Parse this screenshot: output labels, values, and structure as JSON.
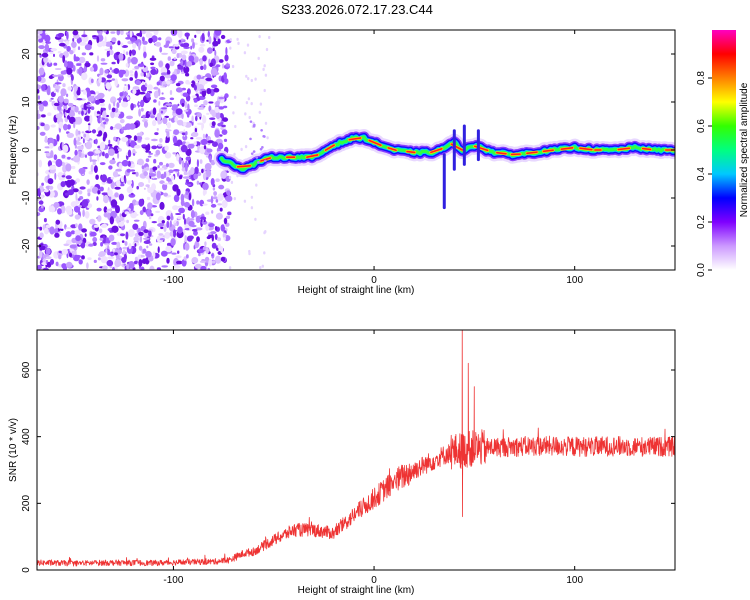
{
  "title": "S233.2026.072.17.23.C44",
  "chart_data": [
    {
      "type": "heatmap",
      "xlabel": "Height of straight line (km)",
      "ylabel": "Frequency (Hz)",
      "xlim": [
        -168,
        150
      ],
      "ylim": [
        -25,
        25
      ],
      "xticks": [
        -100,
        0,
        100
      ],
      "yticks": [
        -20,
        -10,
        0,
        10,
        20
      ],
      "colorbar": {
        "label": "Normalized spectral amplitude",
        "range": [
          0,
          1
        ],
        "ticks": [
          "0.0",
          "0.2",
          "0.4",
          "0.6",
          "0.8"
        ],
        "tick_values": [
          0,
          0.2,
          0.4,
          0.6,
          0.8
        ],
        "colors": [
          "#ffffff",
          "#cc99ff",
          "#7f00ff",
          "#0000ff",
          "#00c8ff",
          "#00ff80",
          "#33ff00",
          "#ffff00",
          "#ff8000",
          "#ff0000",
          "#ff00c0"
        ]
      },
      "noise_region_km": [
        -168,
        -72
      ],
      "ridge": {
        "x": [
          -76,
          -72,
          -66,
          -60,
          -55,
          -50,
          -40,
          -30,
          -20,
          -10,
          -5,
          0,
          10,
          20,
          30,
          35,
          40,
          44,
          48,
          52,
          56,
          60,
          70,
          80,
          90,
          100,
          110,
          120,
          130,
          140,
          150
        ],
        "y": [
          -2.0,
          -2.5,
          -4.0,
          -3.0,
          -2.0,
          -1.5,
          -1.5,
          -1.5,
          1.0,
          2.5,
          2.5,
          1.5,
          0,
          -0.5,
          -0.5,
          0.5,
          1.5,
          0,
          0.5,
          1.0,
          0,
          -0.5,
          -1.0,
          -0.5,
          0,
          0.5,
          0,
          0,
          0.5,
          0,
          0
        ]
      }
    },
    {
      "type": "line",
      "xlabel": "Height of straight line (km)",
      "ylabel": "SNR (10 * v/v)",
      "xlim": [
        -168,
        150
      ],
      "ylim": [
        0,
        720
      ],
      "xticks": [
        -100,
        0,
        100
      ],
      "yticks": [
        0,
        200,
        400,
        600
      ],
      "color": "#ee3333",
      "series": [
        {
          "name": "SNR",
          "x": [
            -168,
            -150,
            -130,
            -110,
            -90,
            -80,
            -72,
            -65,
            -60,
            -50,
            -40,
            -30,
            -20,
            -10,
            0,
            10,
            20,
            30,
            35,
            40,
            45,
            50,
            60,
            70,
            80,
            90,
            100,
            110,
            120,
            130,
            140,
            150
          ],
          "values": [
            22,
            20,
            22,
            21,
            24,
            25,
            30,
            50,
            55,
            90,
            120,
            120,
            110,
            165,
            215,
            265,
            300,
            330,
            345,
            355,
            360,
            365,
            368,
            370,
            372,
            372,
            370,
            370,
            372,
            370,
            370,
            370
          ]
        }
      ],
      "noise_amplitude_db": 0,
      "spikes": [
        {
          "x": 44,
          "peak": 720,
          "trough": 160
        },
        {
          "x": 47,
          "peak": 620
        },
        {
          "x": 50,
          "peak": 550
        }
      ]
    }
  ]
}
